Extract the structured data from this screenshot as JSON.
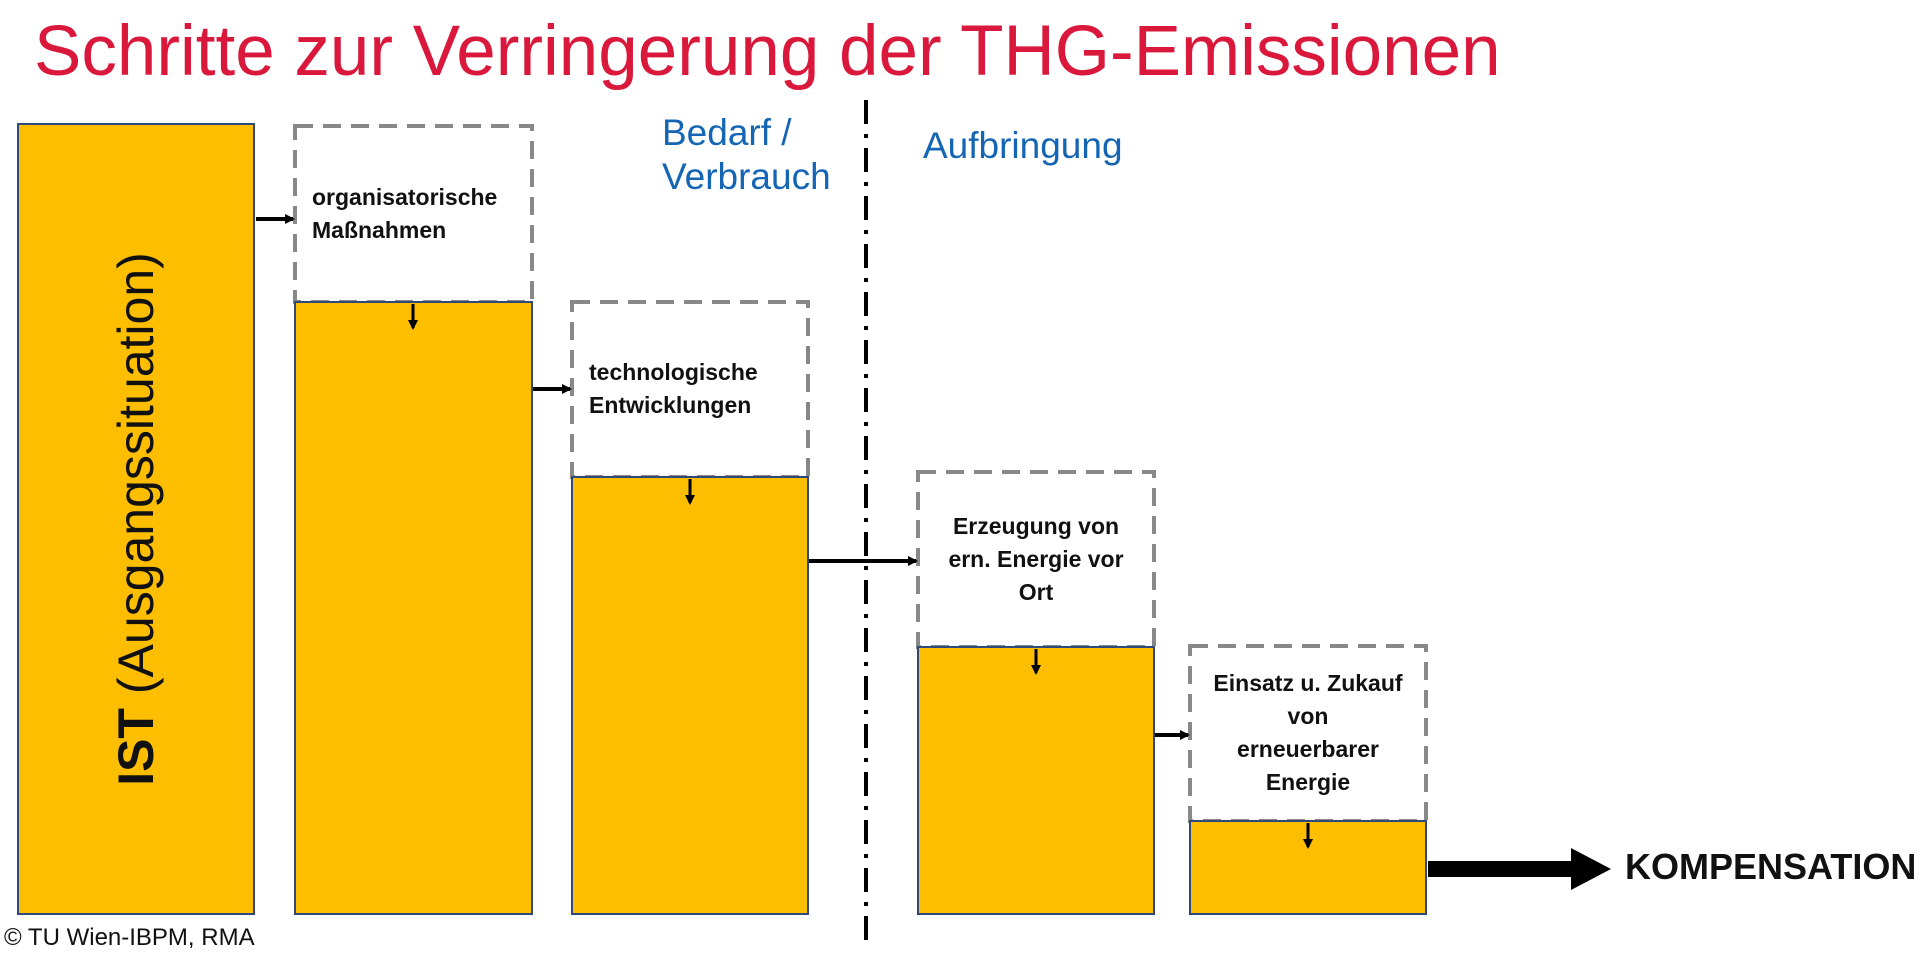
{
  "title": "Schritte zur Verringerung der THG-Emissionen",
  "sections": {
    "demand": "Bedarf /\nVerbrauch",
    "supply": "Aufbringung"
  },
  "ist": {
    "bold": "IST",
    "rest": " (Ausgangssituation)"
  },
  "steps": [
    {
      "label": "organisatorische\nMaßnahmen"
    },
    {
      "label": "technologische\nEntwicklungen"
    },
    {
      "label": "Erzeugung von\nern. Energie vor\nOrt"
    },
    {
      "label": "Einsatz u. Zukauf\nvon\nerneuerbarer\nEnergie"
    }
  ],
  "result": "KOMPENSATION",
  "copyright": "© TU Wien-IBPM, RMA",
  "colors": {
    "title": "#d9183b",
    "bar_fill": "#fdbe00",
    "bar_border": "#2f4a7a",
    "dashed_border": "#888888",
    "section_label": "#1565b5",
    "arrow": "#000000"
  }
}
